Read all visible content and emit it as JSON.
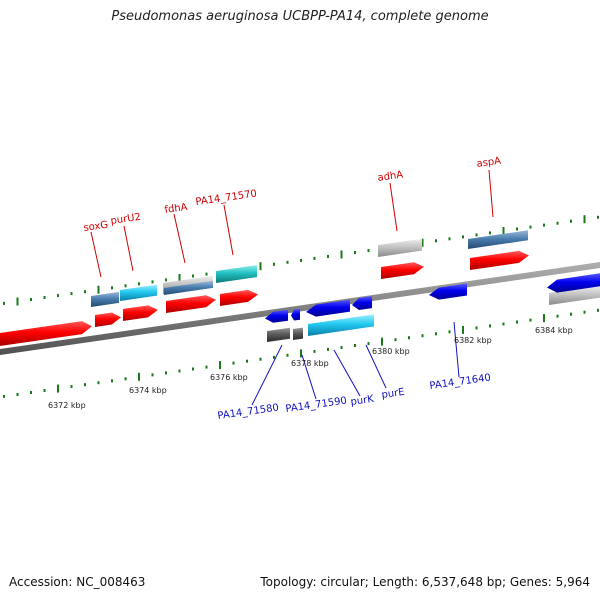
{
  "title": "Pseudomonas aeruginosa UCBPP-PA14, complete genome",
  "footer": {
    "accession": "Accession: NC_008463",
    "summary": "Topology: circular; Length: 6,537,648 bp; Genes: 5,964"
  },
  "colors": {
    "forward_label": "#d00000",
    "reverse_label": "#1010c0",
    "tick": "#1a7a1a",
    "backbone": "#888888"
  },
  "scale_labels": [
    "6372 kbp",
    "6374 kbp",
    "6376 kbp",
    "6378 kbp",
    "6380 kbp",
    "6382 kbp",
    "6384 kbp"
  ],
  "forward_gene_labels": [
    "soxG",
    "purU2",
    "fdhA",
    "PA14_71570",
    "adhA",
    "aspA"
  ],
  "reverse_gene_labels": [
    "PA14_71580",
    "PA14_71590",
    "purK",
    "purE",
    "PA14_71640"
  ]
}
